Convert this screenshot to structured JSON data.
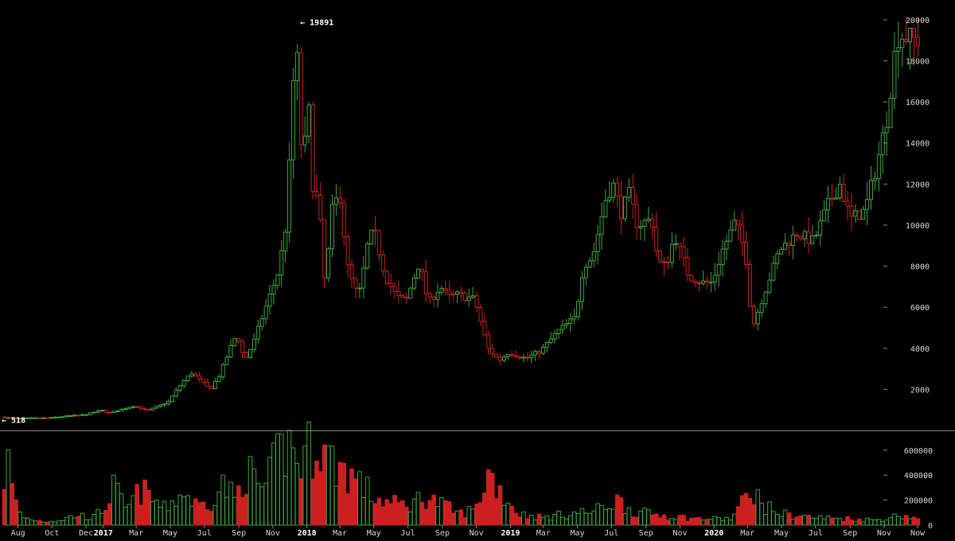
{
  "chart_data": [
    {
      "type": "candlestick",
      "title": "",
      "xlabel": "",
      "ylabel": "",
      "y_ticks": [
        2000,
        4000,
        6000,
        8000,
        10000,
        12000,
        14000,
        16000,
        18000,
        20000
      ],
      "ylim": [
        0,
        20500
      ],
      "x_range": [
        "2016-07-04",
        "2020-12-31"
      ],
      "x_ticks": [
        {
          "label": "Aug",
          "date": "2016-08-01",
          "bold": false
        },
        {
          "label": "Oct",
          "date": "2016-10-01",
          "bold": false
        },
        {
          "label": "Dec",
          "date": "2016-12-01",
          "bold": false
        },
        {
          "label": "2017",
          "date": "2017-01-01",
          "bold": true
        },
        {
          "label": "Mar",
          "date": "2017-03-01",
          "bold": false
        },
        {
          "label": "May",
          "date": "2017-05-01",
          "bold": false
        },
        {
          "label": "Jul",
          "date": "2017-07-01",
          "bold": false
        },
        {
          "label": "Sep",
          "date": "2017-09-01",
          "bold": false
        },
        {
          "label": "Nov",
          "date": "2017-11-01",
          "bold": false
        },
        {
          "label": "2018",
          "date": "2018-01-01",
          "bold": true
        },
        {
          "label": "Mar",
          "date": "2018-03-01",
          "bold": false
        },
        {
          "label": "May",
          "date": "2018-05-01",
          "bold": false
        },
        {
          "label": "Jul",
          "date": "2018-07-01",
          "bold": false
        },
        {
          "label": "Sep",
          "date": "2018-09-01",
          "bold": false
        },
        {
          "label": "Nov",
          "date": "2018-11-01",
          "bold": false
        },
        {
          "label": "2019",
          "date": "2019-01-01",
          "bold": true
        },
        {
          "label": "Mar",
          "date": "2019-03-01",
          "bold": false
        },
        {
          "label": "May",
          "date": "2019-05-01",
          "bold": false
        },
        {
          "label": "Jul",
          "date": "2019-07-01",
          "bold": false
        },
        {
          "label": "Sep",
          "date": "2019-09-01",
          "bold": false
        },
        {
          "label": "Nov",
          "date": "2019-11-01",
          "bold": false
        },
        {
          "label": "2020",
          "date": "2020-01-01",
          "bold": true
        },
        {
          "label": "Mar",
          "date": "2020-03-01",
          "bold": false
        },
        {
          "label": "May",
          "date": "2020-05-01",
          "bold": false
        },
        {
          "label": "Jul",
          "date": "2020-07-01",
          "bold": false
        },
        {
          "label": "Sep",
          "date": "2020-09-01",
          "bold": false
        },
        {
          "label": "Nov",
          "date": "2020-11-01",
          "bold": false
        },
        {
          "label": "Now",
          "date": "2020-12-31",
          "bold": false
        }
      ],
      "annotations": {
        "max_label": "← 19891",
        "max_value": 19891,
        "max_date": "2017-12-17",
        "min_label": "← 518",
        "min_value": 518,
        "min_date": "2016-07-04"
      },
      "colors": {
        "up": "#3ca73c",
        "down": "#cc2020",
        "background": "#000000",
        "text": "#d8d8d8",
        "axis": "#8a8a8a"
      },
      "price_anchors": [
        [
          "2016-07-04",
          650
        ],
        [
          "2016-08-01",
          580
        ],
        [
          "2016-09-01",
          600
        ],
        [
          "2016-10-01",
          610
        ],
        [
          "2016-11-01",
          700
        ],
        [
          "2016-12-01",
          760
        ],
        [
          "2017-01-01",
          980
        ],
        [
          "2017-01-15",
          850
        ],
        [
          "2017-02-01",
          980
        ],
        [
          "2017-03-01",
          1200
        ],
        [
          "2017-03-25",
          950
        ],
        [
          "2017-04-15",
          1200
        ],
        [
          "2017-05-01",
          1400
        ],
        [
          "2017-05-25",
          2300
        ],
        [
          "2017-06-12",
          2800
        ],
        [
          "2017-07-15",
          2000
        ],
        [
          "2017-08-01",
          2700
        ],
        [
          "2017-08-20",
          4000
        ],
        [
          "2017-09-01",
          4700
        ],
        [
          "2017-09-15",
          3400
        ],
        [
          "2017-10-01",
          4300
        ],
        [
          "2017-10-20",
          5800
        ],
        [
          "2017-11-01",
          6700
        ],
        [
          "2017-11-15",
          7800
        ],
        [
          "2017-12-01",
          10500
        ],
        [
          "2017-12-08",
          16000
        ],
        [
          "2017-12-17",
          19000
        ],
        [
          "2017-12-22",
          14000
        ],
        [
          "2018-01-01",
          14000
        ],
        [
          "2018-01-07",
          16000
        ],
        [
          "2018-01-17",
          11000
        ],
        [
          "2018-01-25",
          11500
        ],
        [
          "2018-02-06",
          7000
        ],
        [
          "2018-02-20",
          11000
        ],
        [
          "2018-03-05",
          11400
        ],
        [
          "2018-03-18",
          8000
        ],
        [
          "2018-04-01",
          6800
        ],
        [
          "2018-04-10",
          6800
        ],
        [
          "2018-04-25",
          9300
        ],
        [
          "2018-05-05",
          9700
        ],
        [
          "2018-05-25",
          7500
        ],
        [
          "2018-06-15",
          6500
        ],
        [
          "2018-07-01",
          6300
        ],
        [
          "2018-07-25",
          8200
        ],
        [
          "2018-08-10",
          6200
        ],
        [
          "2018-09-01",
          7000
        ],
        [
          "2018-09-15",
          6500
        ],
        [
          "2018-10-01",
          6600
        ],
        [
          "2018-11-01",
          6400
        ],
        [
          "2018-11-25",
          4000
        ],
        [
          "2018-12-15",
          3400
        ],
        [
          "2019-01-01",
          3800
        ],
        [
          "2019-02-01",
          3500
        ],
        [
          "2019-03-01",
          3900
        ],
        [
          "2019-04-02",
          4900
        ],
        [
          "2019-05-01",
          5500
        ],
        [
          "2019-05-15",
          8000
        ],
        [
          "2019-06-01",
          8500
        ],
        [
          "2019-06-26",
          11500
        ],
        [
          "2019-07-10",
          12000
        ],
        [
          "2019-07-20",
          10500
        ],
        [
          "2019-08-05",
          11500
        ],
        [
          "2019-08-20",
          10000
        ],
        [
          "2019-09-15",
          10300
        ],
        [
          "2019-09-26",
          8200
        ],
        [
          "2019-10-10",
          8000
        ],
        [
          "2019-10-26",
          9500
        ],
        [
          "2019-11-20",
          7500
        ],
        [
          "2019-12-15",
          7200
        ],
        [
          "2020-01-01",
          7200
        ],
        [
          "2020-01-20",
          8800
        ],
        [
          "2020-02-12",
          10200
        ],
        [
          "2020-03-01",
          8600
        ],
        [
          "2020-03-13",
          5000
        ],
        [
          "2020-04-01",
          6500
        ],
        [
          "2020-05-01",
          8800
        ],
        [
          "2020-06-01",
          9600
        ],
        [
          "2020-07-01",
          9200
        ],
        [
          "2020-07-27",
          11000
        ],
        [
          "2020-08-17",
          12000
        ],
        [
          "2020-09-05",
          10300
        ],
        [
          "2020-10-01",
          10700
        ],
        [
          "2020-10-21",
          12800
        ],
        [
          "2020-11-10",
          15300
        ],
        [
          "2020-11-24",
          18500
        ],
        [
          "2020-12-01",
          19300
        ],
        [
          "2020-12-31",
          19000
        ]
      ]
    },
    {
      "type": "bar",
      "title": "",
      "xlabel": "",
      "ylabel": "",
      "y_ticks": [
        0,
        200000,
        400000,
        600000
      ],
      "ylim": [
        0,
        720000
      ],
      "volume_anchors": [
        [
          "2016-07-04",
          250000
        ],
        [
          "2016-07-12",
          560000
        ],
        [
          "2016-07-25",
          200000
        ],
        [
          "2016-08-10",
          60000
        ],
        [
          "2016-09-15",
          30000
        ],
        [
          "2016-10-15",
          40000
        ],
        [
          "2016-11-15",
          80000
        ],
        [
          "2016-12-15",
          60000
        ],
        [
          "2017-01-05",
          150000
        ],
        [
          "2017-01-20",
          300000
        ],
        [
          "2017-02-10",
          120000
        ],
        [
          "2017-03-10",
          280000
        ],
        [
          "2017-04-01",
          200000
        ],
        [
          "2017-04-20",
          130000
        ],
        [
          "2017-05-25",
          260000
        ],
        [
          "2017-06-20",
          150000
        ],
        [
          "2017-07-15",
          200000
        ],
        [
          "2017-08-05",
          330000
        ],
        [
          "2017-08-25",
          200000
        ],
        [
          "2017-09-15",
          450000
        ],
        [
          "2017-10-01",
          320000
        ],
        [
          "2017-10-20",
          300000
        ],
        [
          "2017-11-10",
          550000
        ],
        [
          "2017-12-01",
          640000
        ],
        [
          "2017-12-20",
          480000
        ],
        [
          "2018-01-10",
          640000
        ],
        [
          "2018-01-20",
          700000
        ],
        [
          "2018-02-10",
          520000
        ],
        [
          "2018-03-01",
          470000
        ],
        [
          "2018-04-01",
          360000
        ],
        [
          "2018-05-01",
          220000
        ],
        [
          "2018-06-01",
          170000
        ],
        [
          "2018-07-01",
          160000
        ],
        [
          "2018-08-01",
          230000
        ],
        [
          "2018-09-01",
          160000
        ],
        [
          "2018-10-01",
          90000
        ],
        [
          "2018-11-01",
          130000
        ],
        [
          "2018-11-22",
          420000
        ],
        [
          "2018-12-10",
          300000
        ],
        [
          "2019-01-15",
          90000
        ],
        [
          "2019-03-01",
          60000
        ],
        [
          "2019-04-15",
          90000
        ],
        [
          "2019-06-01",
          110000
        ],
        [
          "2019-07-10",
          200000
        ],
        [
          "2019-08-15",
          100000
        ],
        [
          "2019-10-01",
          80000
        ],
        [
          "2019-12-01",
          50000
        ],
        [
          "2020-02-01",
          50000
        ],
        [
          "2020-03-12",
          300000
        ],
        [
          "2020-03-25",
          160000
        ],
        [
          "2020-05-01",
          90000
        ],
        [
          "2020-07-01",
          60000
        ],
        [
          "2020-09-01",
          50000
        ],
        [
          "2020-10-15",
          40000
        ],
        [
          "2020-12-05",
          80000
        ],
        [
          "2020-12-31",
          50000
        ]
      ]
    }
  ]
}
